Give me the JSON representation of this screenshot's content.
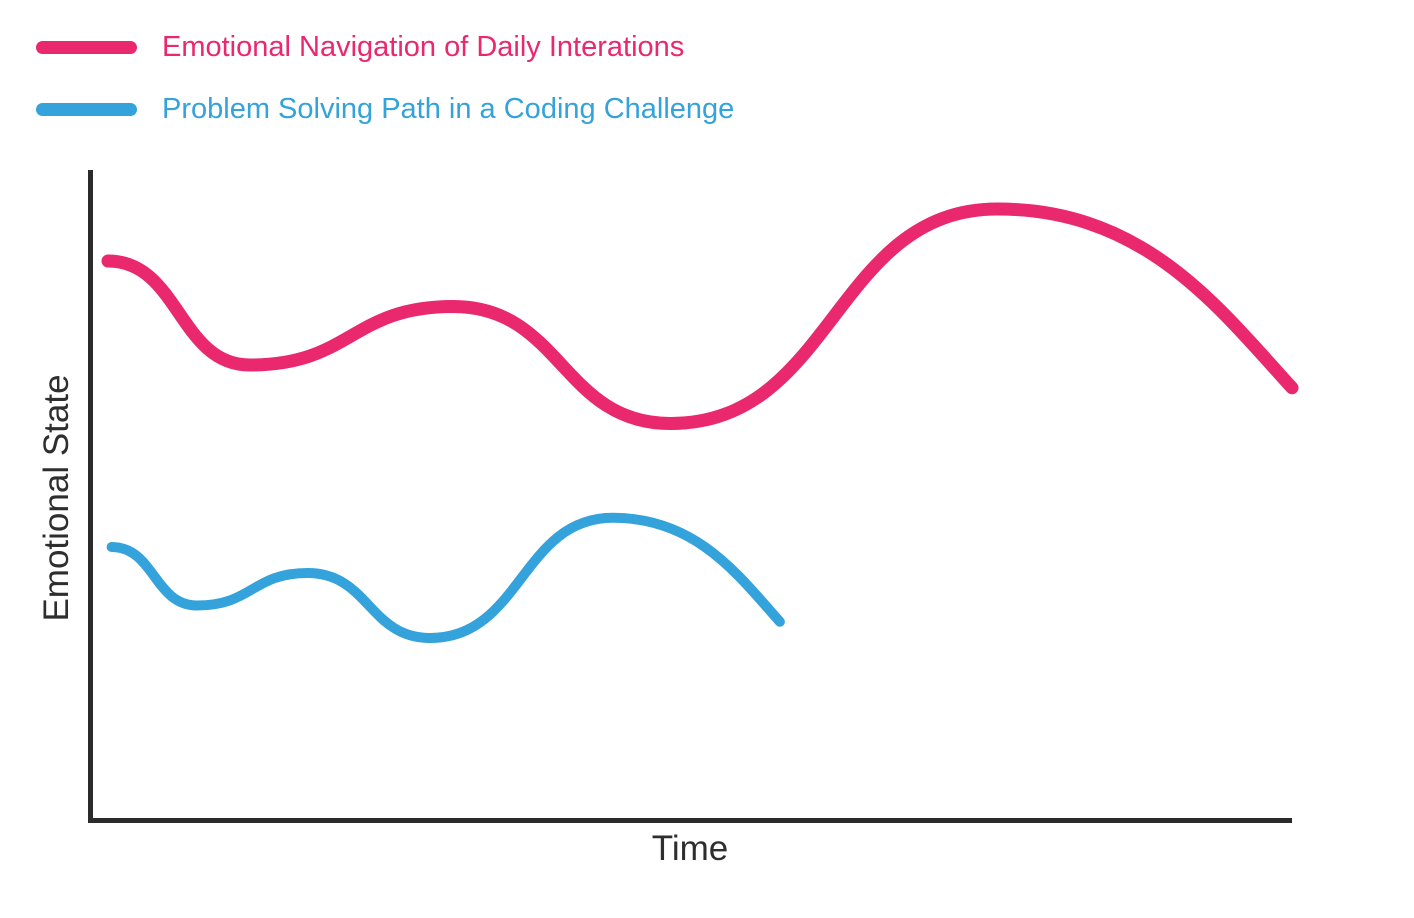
{
  "legend": {
    "items": [
      {
        "label": "Emotional Navigation of Daily Interations",
        "color": "#E9286E",
        "swatch": "pink-rounded-bar"
      },
      {
        "label": "Problem Solving Path in a Coding Challenge",
        "color": "#34A2DB",
        "swatch": "blue-rounded-bar"
      }
    ]
  },
  "axes": {
    "x_label": "Time",
    "y_label": "Emotional State",
    "axis_color": "#2b2b2b",
    "tick_labels": "none"
  },
  "chart_data": {
    "type": "line",
    "title": "",
    "xlabel": "Time",
    "ylabel": "Emotional State",
    "xlim": [
      0,
      100
    ],
    "ylim": [
      0,
      100
    ],
    "grid": false,
    "legend_position": "top-left",
    "style": "qualitative smooth waves, no ticks or numeric scale, rounded line caps",
    "series": [
      {
        "name": "Emotional Navigation of Daily Interations",
        "color": "#E9286E",
        "stroke_width": 13,
        "points": [
          {
            "x": 1.5,
            "y": 86.0
          },
          {
            "x": 13.3,
            "y": 70.0
          },
          {
            "x": 30.2,
            "y": 79.0
          },
          {
            "x": 48.3,
            "y": 61.0
          },
          {
            "x": 75.5,
            "y": 94.0
          },
          {
            "x": 100.0,
            "y": 66.5
          }
        ]
      },
      {
        "name": "Problem Solving Path in a Coding Challenge",
        "color": "#34A2DB",
        "stroke_width": 10,
        "points": [
          {
            "x": 1.8,
            "y": 42.0
          },
          {
            "x": 8.9,
            "y": 33.0
          },
          {
            "x": 18.1,
            "y": 38.0
          },
          {
            "x": 28.3,
            "y": 28.0
          },
          {
            "x": 43.5,
            "y": 46.5
          },
          {
            "x": 57.4,
            "y": 30.5
          }
        ]
      }
    ]
  }
}
